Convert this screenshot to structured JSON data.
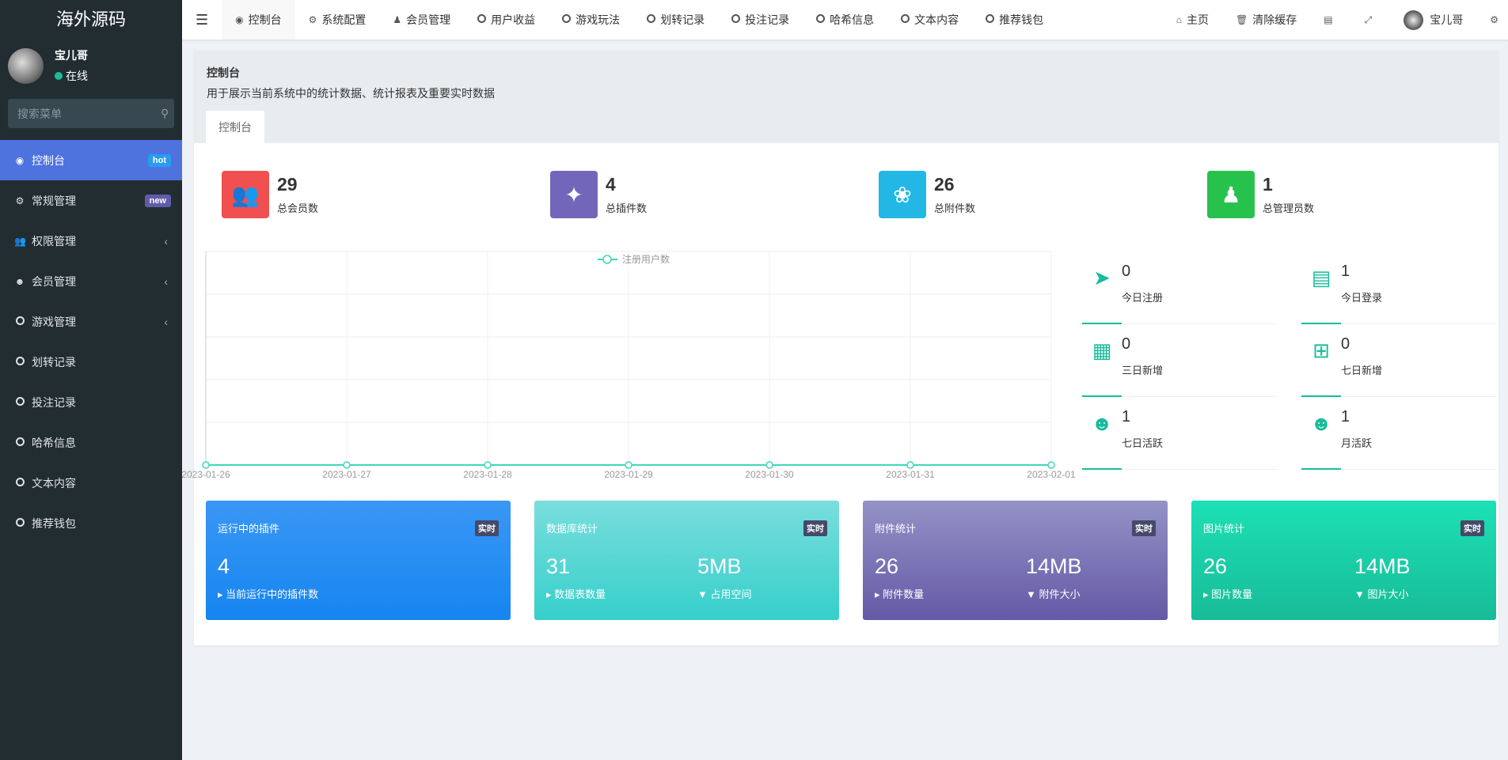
{
  "app": {
    "logo": "海外源码"
  },
  "user": {
    "name": "宝儿哥",
    "status": "在线"
  },
  "search": {
    "placeholder": "搜索菜单"
  },
  "sidebar": {
    "items": [
      {
        "label": "控制台",
        "icon": "dashboard-icon",
        "badge": "hot",
        "badge_color": "#2a9cf0",
        "active": true
      },
      {
        "label": "常规管理",
        "icon": "cogs-icon",
        "badge": "new",
        "badge_color": "#605ca8"
      },
      {
        "label": "权限管理",
        "icon": "users-icon",
        "chevron": true
      },
      {
        "label": "会员管理",
        "icon": "user-circle-icon",
        "chevron": true
      },
      {
        "label": "游戏管理",
        "icon": "circle-icon",
        "chevron": true
      },
      {
        "label": "划转记录",
        "icon": "circle-icon"
      },
      {
        "label": "投注记录",
        "icon": "circle-icon"
      },
      {
        "label": "哈希信息",
        "icon": "circle-icon"
      },
      {
        "label": "文本内容",
        "icon": "circle-icon"
      },
      {
        "label": "推荐钱包",
        "icon": "circle-icon"
      }
    ]
  },
  "topnav": {
    "tabs": [
      {
        "label": "控制台",
        "icon": "dashboard-icon"
      },
      {
        "label": "系统配置",
        "icon": "gear-icon"
      },
      {
        "label": "会员管理",
        "icon": "user-icon"
      },
      {
        "label": "用户收益",
        "icon": "circle-icon"
      },
      {
        "label": "游戏玩法",
        "icon": "circle-icon"
      },
      {
        "label": "划转记录",
        "icon": "circle-icon"
      },
      {
        "label": "投注记录",
        "icon": "circle-icon"
      },
      {
        "label": "哈希信息",
        "icon": "circle-icon"
      },
      {
        "label": "文本内容",
        "icon": "circle-icon"
      },
      {
        "label": "推荐钱包",
        "icon": "circle-icon"
      }
    ],
    "home": "主页",
    "clear_cache": "清除缓存",
    "user": "宝儿哥"
  },
  "page": {
    "title": "控制台",
    "desc": "用于展示当前系统中的统计数据、统计报表及重要实时数据",
    "tab": "控制台"
  },
  "stats": [
    {
      "value": "29",
      "label": "总会员数",
      "color": "#f05050",
      "icon": "users-icon"
    },
    {
      "value": "4",
      "label": "总插件数",
      "color": "#7266ba",
      "icon": "magic-wand-icon"
    },
    {
      "value": "26",
      "label": "总附件数",
      "color": "#23b7e5",
      "icon": "leaf-icon"
    },
    {
      "value": "1",
      "label": "总管理员数",
      "color": "#27c24c",
      "icon": "user-icon"
    }
  ],
  "chart_data": {
    "type": "line",
    "legend": "注册用户数",
    "legend_position": "top-center",
    "grid": true,
    "categories": [
      "2023-01-26",
      "2023-01-27",
      "2023-01-28",
      "2023-01-29",
      "2023-01-30",
      "2023-01-31",
      "2023-02-01"
    ],
    "series": [
      {
        "name": "注册用户数",
        "values": [
          0,
          0,
          0,
          0,
          0,
          0,
          0
        ]
      }
    ],
    "color": "#40d6b9"
  },
  "mini": [
    {
      "value": "0",
      "label": "今日注册",
      "icon": "rocket-icon"
    },
    {
      "value": "1",
      "label": "今日登录",
      "icon": "id-card-icon"
    },
    {
      "value": "0",
      "label": "三日新增",
      "icon": "calendar-icon"
    },
    {
      "value": "0",
      "label": "七日新增",
      "icon": "calendar-plus-icon"
    },
    {
      "value": "1",
      "label": "七日活跃",
      "icon": "user-circle-icon"
    },
    {
      "value": "1",
      "label": "月活跃",
      "icon": "user-circle-icon"
    }
  ],
  "cards": [
    {
      "title": "运行中的插件",
      "tag": "实时",
      "v1": "4",
      "l1": "当前运行中的插件数",
      "grad": [
        "#3a97f5",
        "#1685f0"
      ]
    },
    {
      "title": "数据库统计",
      "tag": "实时",
      "v1": "31",
      "l1": "数据表数量",
      "v2": "5MB",
      "l2": "占用空间",
      "grad": [
        "#79dedd",
        "#36cfcb"
      ]
    },
    {
      "title": "附件统计",
      "tag": "实时",
      "v1": "26",
      "l1": "附件数量",
      "v2": "14MB",
      "l2": "附件大小",
      "grad": [
        "#9592c6",
        "#6459a6"
      ]
    },
    {
      "title": "图片统计",
      "tag": "实时",
      "v1": "26",
      "l1": "图片数量",
      "v2": "14MB",
      "l2": "图片大小",
      "grad": [
        "#1de0b6",
        "#17bc98"
      ]
    }
  ]
}
